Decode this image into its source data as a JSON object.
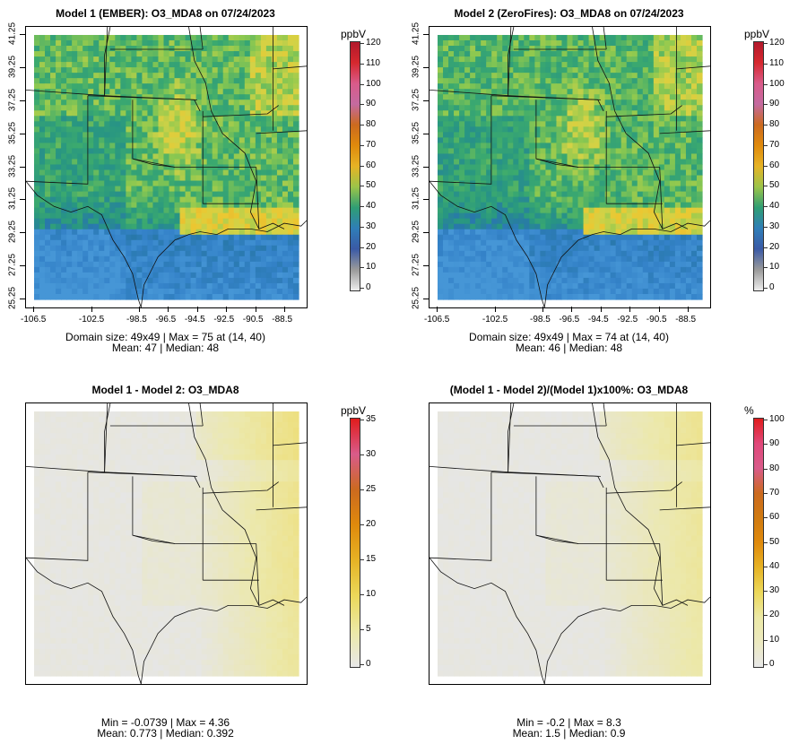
{
  "panels": [
    {
      "id": "p1",
      "title": "Model 1 (EMBER): O3_MDA8 on 07/24/2023",
      "unit": "ppbV",
      "cbar_ticks": [
        "120",
        "110",
        "100",
        "90",
        "80",
        "70",
        "60",
        "50",
        "40",
        "30",
        "20",
        "10",
        "0"
      ],
      "cbar_colors": [
        "#b2182b",
        "#d6282e",
        "#d95b8a",
        "#c46aa0",
        "#cc6a1f",
        "#e08a0c",
        "#e6b325",
        "#9cc449",
        "#2f9e74",
        "#2f7eb8",
        "#3a5aa6",
        "#9a9a9a",
        "#eeeeee"
      ],
      "show_axes": true,
      "stats": [
        "Domain size: 49x49 | Max = 75 at (14, 40)",
        "Mean: 47 |  Median: 48"
      ],
      "style": "o3"
    },
    {
      "id": "p2",
      "title": "Model 2 (ZeroFires): O3_MDA8 on 07/24/2023",
      "unit": "ppbV",
      "cbar_ticks": [
        "120",
        "110",
        "100",
        "90",
        "80",
        "70",
        "60",
        "50",
        "40",
        "30",
        "20",
        "10",
        "0"
      ],
      "cbar_colors": [
        "#b2182b",
        "#d6282e",
        "#d95b8a",
        "#c46aa0",
        "#cc6a1f",
        "#e08a0c",
        "#e6b325",
        "#9cc449",
        "#2f9e74",
        "#2f7eb8",
        "#3a5aa6",
        "#9a9a9a",
        "#eeeeee"
      ],
      "show_axes": true,
      "stats": [
        "Domain size: 49x49 | Max = 74 at (14, 40)",
        "Mean: 46 |  Median: 48"
      ],
      "style": "o3"
    },
    {
      "id": "p3",
      "title": "Model 1 - Model 2: O3_MDA8",
      "unit": "ppbV",
      "cbar_ticks": [
        "35",
        "30",
        "25",
        "20",
        "15",
        "10",
        "5",
        "0"
      ],
      "cbar_colors": [
        "#e01c1c",
        "#d95b8a",
        "#cc6a1f",
        "#e08a0c",
        "#e6b325",
        "#ecd85a",
        "#ece9a6",
        "#e8e8e8"
      ],
      "show_axes": false,
      "stats": [
        "Min = -0.0739 | Max = 4.36",
        "Mean: 0.773 |  Median: 0.392"
      ],
      "style": "diff"
    },
    {
      "id": "p4",
      "title": "(Model 1 - Model 2)/(Model 1)x100%: O3_MDA8",
      "unit": "%",
      "cbar_ticks": [
        "100",
        "90",
        "80",
        "70",
        "60",
        "50",
        "40",
        "30",
        "20",
        "10",
        "0"
      ],
      "cbar_colors": [
        "#e01c1c",
        "#e0487a",
        "#d95b8a",
        "#cc6a1f",
        "#d07a10",
        "#e08a0c",
        "#e6b325",
        "#ecd85a",
        "#ece9a6",
        "#ece9c0",
        "#e8e8e8"
      ],
      "show_axes": false,
      "stats": [
        "Min = -0.2 | Max = 8.3",
        "Mean: 1.5 |  Median: 0.9"
      ],
      "style": "diff"
    }
  ],
  "x_ticks": [
    "-106.5",
    "-102.5",
    "-98.5",
    "-96.5",
    "-94.5",
    "-92.5",
    "-90.5",
    "-88.5"
  ],
  "y_ticks": [
    "25.25",
    "27.25",
    "29.25",
    "31.25",
    "33.25",
    "35.25",
    "37.25",
    "39.25",
    "41.25"
  ]
}
